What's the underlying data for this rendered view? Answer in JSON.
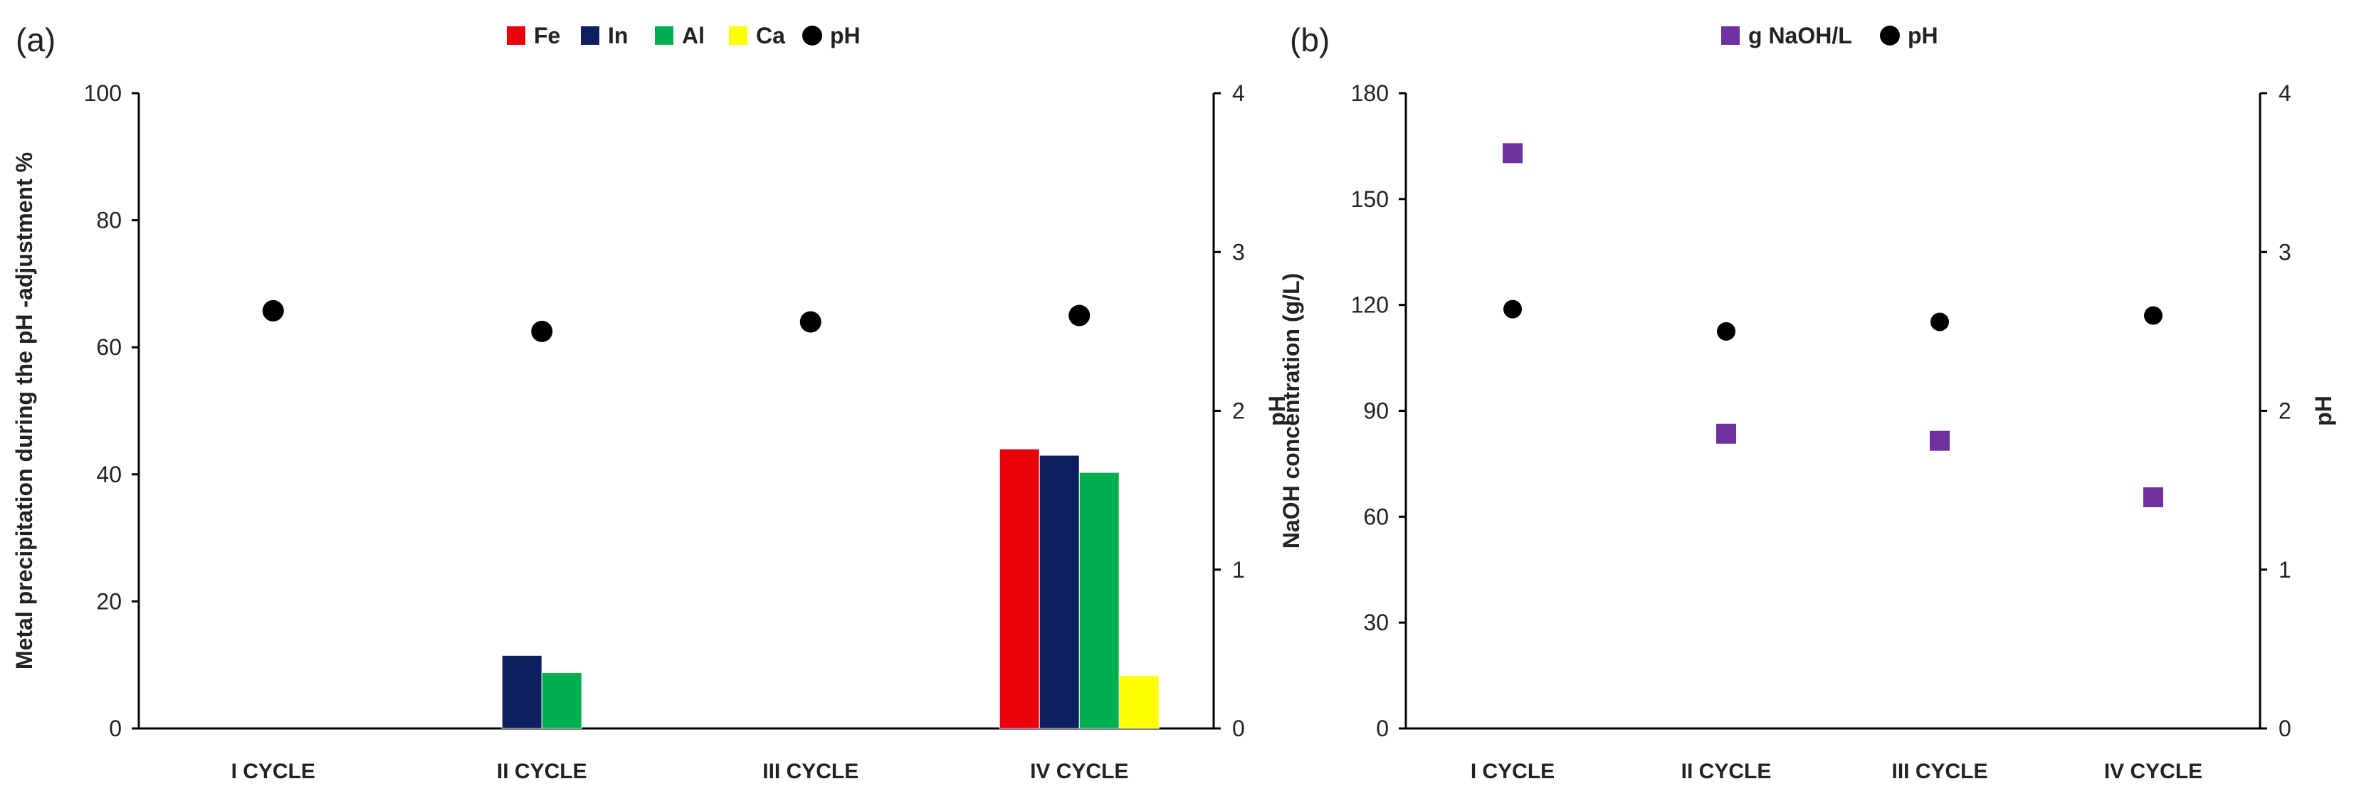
{
  "chart_data": [
    {
      "panel_label": "(a)",
      "type": "bar",
      "categories": [
        "I CYCLE",
        "II CYCLE",
        "III CYCLE",
        "IV CYCLE"
      ],
      "ylabel": "Metal precipitation during the pH -adjustment %",
      "y2label": "pH",
      "ylim": [
        0,
        100
      ],
      "y2lim": [
        0,
        4
      ],
      "yticks": [
        "0",
        "20",
        "40",
        "60",
        "80",
        "100"
      ],
      "y2ticks": [
        "0",
        "1",
        "2",
        "3",
        "4"
      ],
      "legend_position": "top",
      "grid": false,
      "series": [
        {
          "name": "Fe",
          "color": "#e8000b",
          "values": [
            0,
            0,
            0,
            44
          ]
        },
        {
          "name": "In",
          "color": "#0d1f5e",
          "values": [
            0,
            11.5,
            0,
            43
          ]
        },
        {
          "name": "Al",
          "color": "#00b050",
          "values": [
            0,
            8.8,
            0,
            40.3
          ]
        },
        {
          "name": "Ca",
          "color": "#ffff00",
          "values": [
            0,
            0,
            0,
            8.3
          ]
        }
      ],
      "scatter": {
        "name": "pH",
        "color": "#000000",
        "axis": "right",
        "marker": "circle",
        "values": [
          2.63,
          2.5,
          2.56,
          2.6
        ]
      }
    },
    {
      "panel_label": "(b)",
      "type": "scatter",
      "categories": [
        "I CYCLE",
        "II CYCLE",
        "III CYCLE",
        "IV CYCLE"
      ],
      "ylabel": "NaOH concentration (g/L)",
      "y2label": "pH",
      "ylim": [
        0,
        180
      ],
      "y2lim": [
        0,
        4
      ],
      "yticks": [
        "0",
        "30",
        "60",
        "90",
        "120",
        "150",
        "180"
      ],
      "y2ticks": [
        "0",
        "1",
        "2",
        "3",
        "4"
      ],
      "legend_position": "top",
      "grid": false,
      "series": [
        {
          "name": "g NaOH/L",
          "color": "#7030a0",
          "axis": "left",
          "marker": "square",
          "values": [
            163,
            83.5,
            81.5,
            65.5
          ]
        },
        {
          "name": "pH",
          "color": "#000000",
          "axis": "right",
          "marker": "circle",
          "values": [
            2.64,
            2.5,
            2.56,
            2.6
          ]
        }
      ]
    }
  ]
}
